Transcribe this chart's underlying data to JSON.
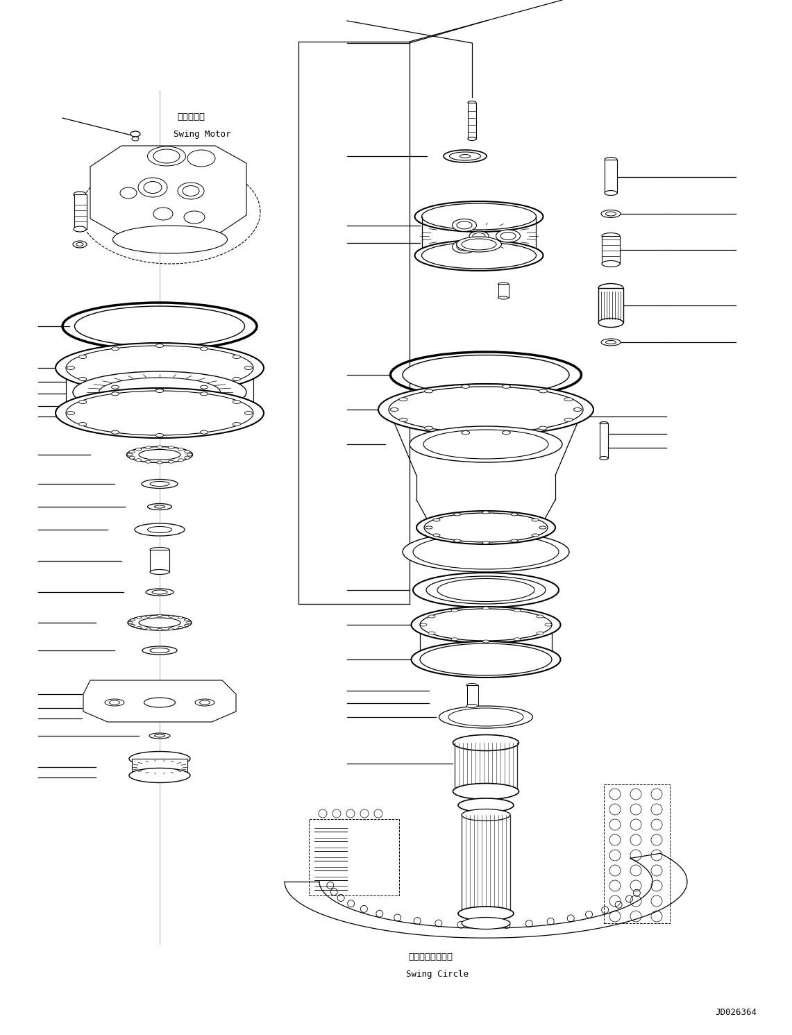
{
  "bg": "#ffffff",
  "lc": "#000000",
  "fw": 11.41,
  "fh": 14.91,
  "dpi": 100,
  "label_motor_jp": "旋回モータ",
  "label_motor_en": "Swing Motor",
  "label_circle_jp": "スイングサークル",
  "label_circle_en": "Swing Circle",
  "label_jd": "JD026364"
}
